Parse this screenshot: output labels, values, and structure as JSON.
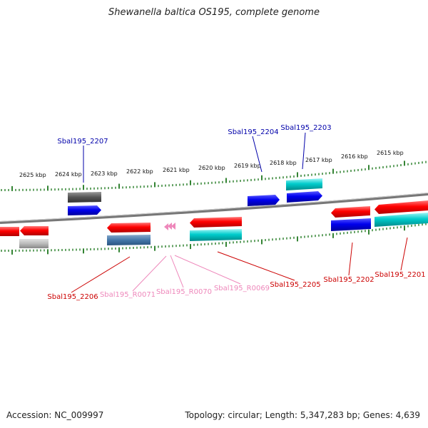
{
  "title": "Shewanella baltica OS195, complete genome",
  "footer": {
    "accession": "Accession: NC_009997",
    "summary": "Topology: circular; Length: 5,347,283 bp; Genes: 4,639"
  },
  "ruler_labels": [
    "2625 kbp",
    "2624 kbp",
    "2623 kbp",
    "2622 kbp",
    "2621 kbp",
    "2620 kbp",
    "2619 kbp",
    "2618 kbp",
    "2617 kbp",
    "2616 kbp",
    "2615 kbp"
  ],
  "gene_labels": {
    "sbal195_2207": "Sbal195_2207",
    "sbal195_2204": "Sbal195_2204",
    "sbal195_2203": "Sbal195_2203",
    "sbal195_2206": "Sbal195_2206",
    "sbal195_r0071": "Sbal195_R0071",
    "sbal195_r0070": "Sbal195_R0070",
    "sbal195_r0069": "Sbal195_R0069",
    "sbal195_2205": "Sbal195_2205",
    "sbal195_2202": "Sbal195_2202",
    "sbal195_2201": "Sbal195_2201"
  },
  "colors": {
    "cds": "#ff0000",
    "protein": "#0000ee",
    "cog_cyan": "#00cccc",
    "cog_gray": "#555555",
    "cog_light_gray": "#bbbbbb",
    "cog_steel": "#4477aa",
    "rna": "#ee88bb",
    "ruler": "#006600",
    "label_blue": "#0000aa",
    "label_red": "#cc0000"
  }
}
